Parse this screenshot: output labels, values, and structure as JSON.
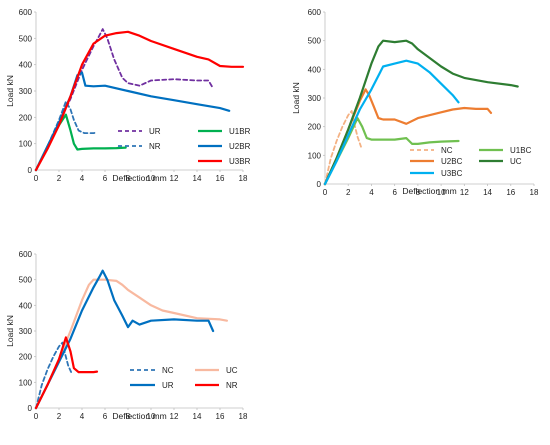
{
  "chart_data": [
    {
      "type": "line",
      "xlabel": "Deflection mm",
      "ylabel": "Load kN",
      "xlim": [
        0,
        18
      ],
      "ylim": [
        0,
        600
      ],
      "xticks": [
        0,
        2,
        4,
        6,
        8,
        10,
        12,
        14,
        16,
        18
      ],
      "yticks": [
        0,
        100,
        200,
        300,
        400,
        500,
        600
      ],
      "grid": false,
      "legend_placement": "bottom-right",
      "series": [
        {
          "name": "UR",
          "color": "#7030A0",
          "style": "dashed",
          "x": [
            0,
            1,
            2,
            3,
            4,
            5,
            5.5,
            5.8,
            6.2,
            6.8,
            7.5,
            8.0,
            9.0,
            10,
            12,
            14,
            15.0,
            15.4
          ],
          "y": [
            0,
            90,
            180,
            270,
            380,
            470,
            510,
            535,
            500,
            420,
            350,
            330,
            320,
            340,
            345,
            340,
            340,
            310
          ]
        },
        {
          "name": "U1BR",
          "color": "#00B050",
          "style": "solid",
          "x": [
            0,
            1,
            2,
            2.6,
            3.0,
            3.3,
            3.6,
            4,
            5,
            6,
            7,
            7.8
          ],
          "y": [
            0,
            90,
            170,
            210,
            150,
            100,
            78,
            80,
            82,
            82,
            83,
            85
          ]
        },
        {
          "name": "NR",
          "color": "#2E75B6",
          "style": "dashed",
          "x": [
            0,
            1,
            2,
            2.6,
            3.0,
            3.3,
            3.7,
            4.2,
            5,
            5.3
          ],
          "y": [
            0,
            90,
            190,
            260,
            230,
            190,
            150,
            140,
            140,
            142
          ]
        },
        {
          "name": "U2BR",
          "color": "#0070C0",
          "style": "solid",
          "x": [
            0,
            1,
            2,
            3,
            3.6,
            4.0,
            4.3,
            5,
            6,
            8,
            10,
            12,
            14,
            16,
            16.8
          ],
          "y": [
            0,
            90,
            180,
            280,
            360,
            370,
            320,
            318,
            320,
            300,
            280,
            265,
            250,
            235,
            225
          ]
        },
        {
          "name": "U3BR",
          "color": "#FF0000",
          "style": "solid",
          "x": [
            0,
            1,
            2,
            3,
            4,
            5,
            6,
            7,
            8,
            9,
            10,
            12,
            14,
            15,
            16,
            17,
            18
          ],
          "y": [
            0,
            80,
            170,
            280,
            400,
            480,
            510,
            520,
            525,
            510,
            490,
            460,
            430,
            420,
            395,
            392,
            392
          ]
        }
      ]
    },
    {
      "type": "line",
      "xlabel": "Deflection mm",
      "ylabel": "Load kN",
      "xlim": [
        0,
        18
      ],
      "ylim": [
        0,
        600
      ],
      "xticks": [
        0,
        2,
        4,
        6,
        8,
        10,
        12,
        14,
        16,
        18
      ],
      "yticks": [
        0,
        100,
        200,
        300,
        400,
        500,
        600
      ],
      "grid": false,
      "legend_placement": "bottom-right",
      "series": [
        {
          "name": "NC",
          "color": "#F4B183",
          "style": "dashed",
          "x": [
            0,
            0.5,
            1,
            1.5,
            2.0,
            2.3,
            2.5,
            2.8,
            3.1
          ],
          "y": [
            0,
            90,
            150,
            200,
            240,
            255,
            215,
            165,
            130
          ]
        },
        {
          "name": "U1BC",
          "color": "#70C050",
          "style": "solid",
          "x": [
            0,
            1,
            2,
            2.8,
            3.2,
            3.6,
            4,
            5,
            6,
            7,
            7.5,
            8,
            9,
            10,
            11.5
          ],
          "y": [
            0,
            80,
            160,
            230,
            200,
            160,
            155,
            155,
            155,
            160,
            140,
            140,
            145,
            148,
            150
          ]
        },
        {
          "name": "U2BC",
          "color": "#ED7D31",
          "style": "solid",
          "x": [
            0,
            1,
            2,
            3,
            3.5,
            3.8,
            4.2,
            4.6,
            5,
            6,
            7,
            8,
            9,
            10,
            11,
            12,
            13,
            14,
            14.3
          ],
          "y": [
            0,
            90,
            190,
            290,
            330,
            310,
            270,
            230,
            225,
            225,
            210,
            230,
            240,
            250,
            260,
            265,
            262,
            262,
            248
          ]
        },
        {
          "name": "UC",
          "color": "#2E7D32",
          "style": "solid",
          "x": [
            0,
            1,
            2,
            3,
            4,
            4.6,
            5,
            6,
            7,
            7.5,
            8,
            9,
            10,
            11,
            12,
            14,
            16,
            16.6
          ],
          "y": [
            0,
            90,
            190,
            300,
            420,
            480,
            500,
            495,
            500,
            490,
            470,
            440,
            410,
            385,
            370,
            355,
            345,
            340
          ]
        },
        {
          "name": "U3BC",
          "color": "#00B0F0",
          "style": "solid",
          "x": [
            0,
            1,
            2,
            3,
            4,
            5,
            6,
            7,
            8,
            9,
            10,
            11,
            11.5
          ],
          "y": [
            0,
            80,
            170,
            260,
            330,
            410,
            420,
            430,
            420,
            390,
            350,
            310,
            285
          ]
        }
      ]
    },
    {
      "type": "line",
      "xlabel": "Deflection mm",
      "ylabel": "Load kN",
      "xlim": [
        0,
        18
      ],
      "ylim": [
        0,
        600
      ],
      "xticks": [
        0,
        2,
        4,
        6,
        8,
        10,
        12,
        14,
        16,
        18
      ],
      "yticks": [
        0,
        100,
        200,
        300,
        400,
        500,
        600
      ],
      "grid": false,
      "legend_placement": "bottom-right",
      "series": [
        {
          "name": "NC",
          "color": "#2E75B6",
          "style": "dashed",
          "x": [
            0,
            0.5,
            1,
            1.5,
            2.0,
            2.3,
            2.5,
            2.8,
            3.1
          ],
          "y": [
            0,
            90,
            150,
            200,
            240,
            255,
            215,
            165,
            135
          ]
        },
        {
          "name": "UC",
          "color": "#F8B9A0",
          "style": "solid",
          "x": [
            0,
            1,
            2,
            3,
            4,
            4.6,
            5,
            6,
            7,
            7.5,
            8,
            9,
            10,
            11,
            12,
            14,
            16,
            16.6
          ],
          "y": [
            0,
            90,
            190,
            300,
            420,
            480,
            500,
            500,
            495,
            480,
            460,
            430,
            400,
            380,
            370,
            350,
            345,
            340
          ]
        },
        {
          "name": "UR",
          "color": "#0070C0",
          "style": "solid",
          "x": [
            0,
            1,
            2,
            3,
            4,
            5,
            5.5,
            5.8,
            6.2,
            6.8,
            7.5,
            8.0,
            8.4,
            9.0,
            10,
            12,
            14,
            15.0,
            15.4
          ],
          "y": [
            0,
            90,
            180,
            270,
            380,
            470,
            510,
            535,
            500,
            420,
            360,
            315,
            340,
            325,
            340,
            345,
            340,
            340,
            300
          ]
        },
        {
          "name": "NR",
          "color": "#FF0000",
          "style": "solid",
          "x": [
            0,
            1,
            2,
            2.6,
            3.0,
            3.3,
            3.7,
            4.2,
            5,
            5.3
          ],
          "y": [
            0,
            90,
            190,
            275,
            220,
            155,
            140,
            140,
            140,
            142
          ]
        }
      ]
    }
  ]
}
